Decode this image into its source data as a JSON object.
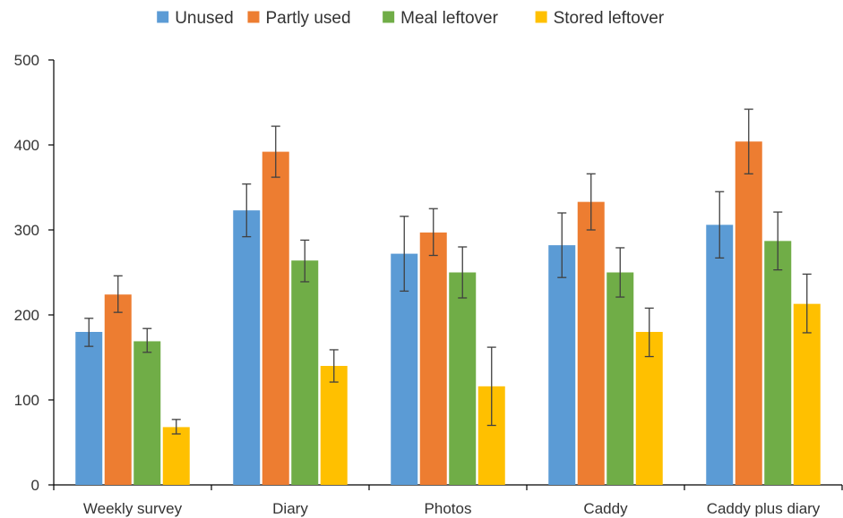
{
  "chart_data": {
    "type": "bar",
    "title": "",
    "xlabel": "",
    "ylabel": "",
    "ylim": [
      0,
      500
    ],
    "yticks": [
      0,
      100,
      200,
      300,
      400,
      500
    ],
    "grid": false,
    "legend_position": "top",
    "categories": [
      "Weekly survey",
      "Diary",
      "Photos",
      "Caddy",
      "Caddy plus diary"
    ],
    "series": [
      {
        "name": "Unused",
        "color": "#5B9BD5",
        "values": [
          180,
          323,
          272,
          282,
          306
        ],
        "error_low": [
          163,
          292,
          228,
          244,
          267
        ],
        "error_high": [
          196,
          354,
          316,
          320,
          345
        ]
      },
      {
        "name": "Partly used",
        "color": "#ED7D31",
        "values": [
          224,
          392,
          297,
          333,
          404
        ],
        "error_low": [
          203,
          362,
          270,
          300,
          366
        ],
        "error_high": [
          246,
          422,
          325,
          366,
          442
        ]
      },
      {
        "name": "Meal leftover",
        "color": "#70AD47",
        "values": [
          169,
          264,
          250,
          250,
          287
        ],
        "error_low": [
          156,
          239,
          220,
          221,
          253
        ],
        "error_high": [
          184,
          288,
          280,
          279,
          321
        ]
      },
      {
        "name": "Stored leftover",
        "color": "#FFC000",
        "values": [
          68,
          140,
          116,
          180,
          213
        ],
        "error_low": [
          60,
          121,
          70,
          151,
          179
        ],
        "error_high": [
          77,
          159,
          162,
          208,
          248
        ]
      }
    ]
  }
}
